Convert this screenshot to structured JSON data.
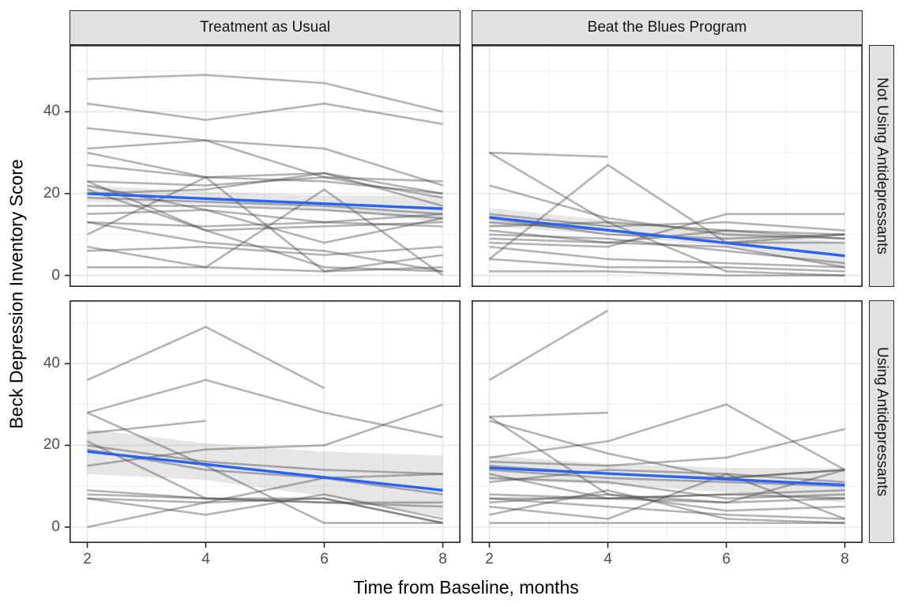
{
  "colors": {
    "trend_line": "#2c63f2",
    "subject_line": "#4a4a4a",
    "subject_line_opacity": 0.42,
    "ribbon_fill": "#8f8f8f",
    "ribbon_opacity": 0.22,
    "strip_background": "#e2e2e2",
    "panel_border": "#262626",
    "grid_major": "#e4e4e4",
    "grid_minor": "#f1f1f1",
    "axis_text": "#4d4d4d",
    "panel_background": "#ffffff"
  },
  "chart_data": {
    "type": "line",
    "title": "",
    "xlabel": "Time from Baseline, months",
    "ylabel": "Beck Depression Inventory Score",
    "x_tick_labels": [
      "2",
      "4",
      "6",
      "8"
    ],
    "y_tick_labels": [
      "0",
      "20",
      "40"
    ],
    "x_ticks": [
      2,
      4,
      6,
      8
    ],
    "y_ticks": [
      0,
      20,
      40
    ],
    "x_range": [
      1.7,
      8.3
    ],
    "y_range": [
      -3,
      56.3
    ],
    "grid": "on",
    "legend_position": "none",
    "months": [
      2,
      4,
      6,
      8
    ],
    "col_facets": [
      "Treatment as Usual",
      "Beat the Blues Program"
    ],
    "row_facets": [
      "Not Using Antidepressants",
      "Using Antidepressants"
    ],
    "facets": [
      {
        "col": "Treatment as Usual",
        "row": "Not Using Antidepressants",
        "subject_lines": [
          [
            48,
            49,
            47,
            40
          ],
          [
            42,
            38,
            42,
            37
          ],
          [
            36,
            33,
            31,
            22
          ],
          [
            31,
            33,
            24,
            23
          ],
          [
            30,
            24,
            25,
            17
          ],
          [
            27,
            24,
            23,
            20
          ],
          [
            23,
            22,
            24,
            19
          ],
          [
            22,
            16,
            8,
            14
          ],
          [
            21,
            11,
            12,
            13
          ],
          [
            20,
            21,
            25,
            20
          ],
          [
            19,
            18,
            17,
            15
          ],
          [
            23,
            11,
            2,
            1
          ],
          [
            17,
            17,
            16,
            14
          ],
          [
            15,
            16,
            13,
            15
          ],
          [
            13,
            12,
            13,
            12
          ],
          [
            13,
            8,
            6,
            1
          ],
          [
            10,
            24,
            1,
            5
          ],
          [
            7,
            2,
            21,
            0
          ],
          [
            6,
            7,
            5,
            7
          ],
          [
            2,
            2,
            1,
            2
          ]
        ],
        "trend": {
          "x": [
            2,
            8
          ],
          "y": [
            20.0,
            16.3
          ]
        },
        "ribbon": {
          "upper": [
            22,
            20.5,
            19.5,
            19.5
          ],
          "lower": [
            18,
            17.5,
            16,
            13
          ]
        }
      },
      {
        "col": "Beat the Blues Program",
        "row": "Not Using Antidepressants",
        "subject_lines": [
          [
            30,
            29,
            null,
            null
          ],
          [
            30,
            13,
            1,
            0
          ],
          [
            4,
            27,
            8,
            10
          ],
          [
            22,
            14,
            10,
            9
          ],
          [
            15,
            12,
            13,
            11
          ],
          [
            14,
            10,
            9,
            10
          ],
          [
            13,
            11,
            8,
            8
          ],
          [
            12,
            13,
            11,
            10
          ],
          [
            11,
            8,
            11,
            9
          ],
          [
            10,
            9,
            6,
            3
          ],
          [
            9,
            8,
            7,
            2
          ],
          [
            8,
            7,
            15,
            15
          ],
          [
            7,
            4,
            3,
            2
          ],
          [
            4,
            2,
            2,
            1
          ],
          [
            1,
            1,
            0,
            0
          ]
        ],
        "trend": {
          "x": [
            2,
            8
          ],
          "y": [
            14.2,
            4.8
          ]
        },
        "ribbon": {
          "upper": [
            16.5,
            13.5,
            11,
            8
          ],
          "lower": [
            12,
            10,
            7,
            2
          ]
        }
      },
      {
        "col": "Treatment as Usual",
        "row": "Using Antidepressants",
        "subject_lines": [
          [
            36,
            49,
            34,
            null
          ],
          [
            28,
            36,
            28,
            22
          ],
          [
            28,
            15,
            1,
            1
          ],
          [
            23,
            26,
            null,
            null
          ],
          [
            21,
            7,
            6,
            5
          ],
          [
            20,
            16,
            14,
            13
          ],
          [
            19,
            14,
            12,
            13
          ],
          [
            15,
            19,
            20,
            30
          ],
          [
            9,
            7,
            7,
            1
          ],
          [
            8,
            7,
            6,
            6
          ],
          [
            7,
            6,
            7,
            1
          ],
          [
            7,
            3,
            8,
            2
          ],
          [
            0,
            6,
            12,
            8
          ]
        ],
        "trend": {
          "x": [
            2,
            8
          ],
          "y": [
            18.5,
            9.0
          ]
        },
        "ribbon": {
          "upper": [
            24,
            20.5,
            18.5,
            17.5
          ],
          "lower": [
            13,
            11.5,
            7.5,
            2.5
          ]
        }
      },
      {
        "col": "Beat the Blues Program",
        "row": "Using Antidepressants",
        "subject_lines": [
          [
            36,
            53,
            null,
            null
          ],
          [
            27,
            28,
            null,
            null
          ],
          [
            26,
            18,
            12,
            14
          ],
          [
            27,
            8,
            6,
            7
          ],
          [
            17,
            21,
            30,
            14
          ],
          [
            16,
            15,
            17,
            24
          ],
          [
            15,
            13,
            12,
            14
          ],
          [
            14,
            12,
            11,
            10
          ],
          [
            13,
            7,
            8,
            9
          ],
          [
            12,
            11,
            7,
            8
          ],
          [
            11,
            14,
            13,
            11
          ],
          [
            8,
            7,
            6,
            14
          ],
          [
            7,
            7,
            8,
            7
          ],
          [
            7,
            5,
            3,
            2
          ],
          [
            6,
            8,
            4,
            5
          ],
          [
            5,
            2,
            13,
            2
          ],
          [
            3,
            9,
            2,
            1
          ],
          [
            1,
            1,
            1,
            1
          ]
        ],
        "trend": {
          "x": [
            2,
            8
          ],
          "y": [
            14.5,
            10.3
          ]
        },
        "ribbon": {
          "upper": [
            17.5,
            15.5,
            14.5,
            14.5
          ],
          "lower": [
            11.5,
            10.5,
            8.5,
            6
          ]
        }
      }
    ]
  }
}
